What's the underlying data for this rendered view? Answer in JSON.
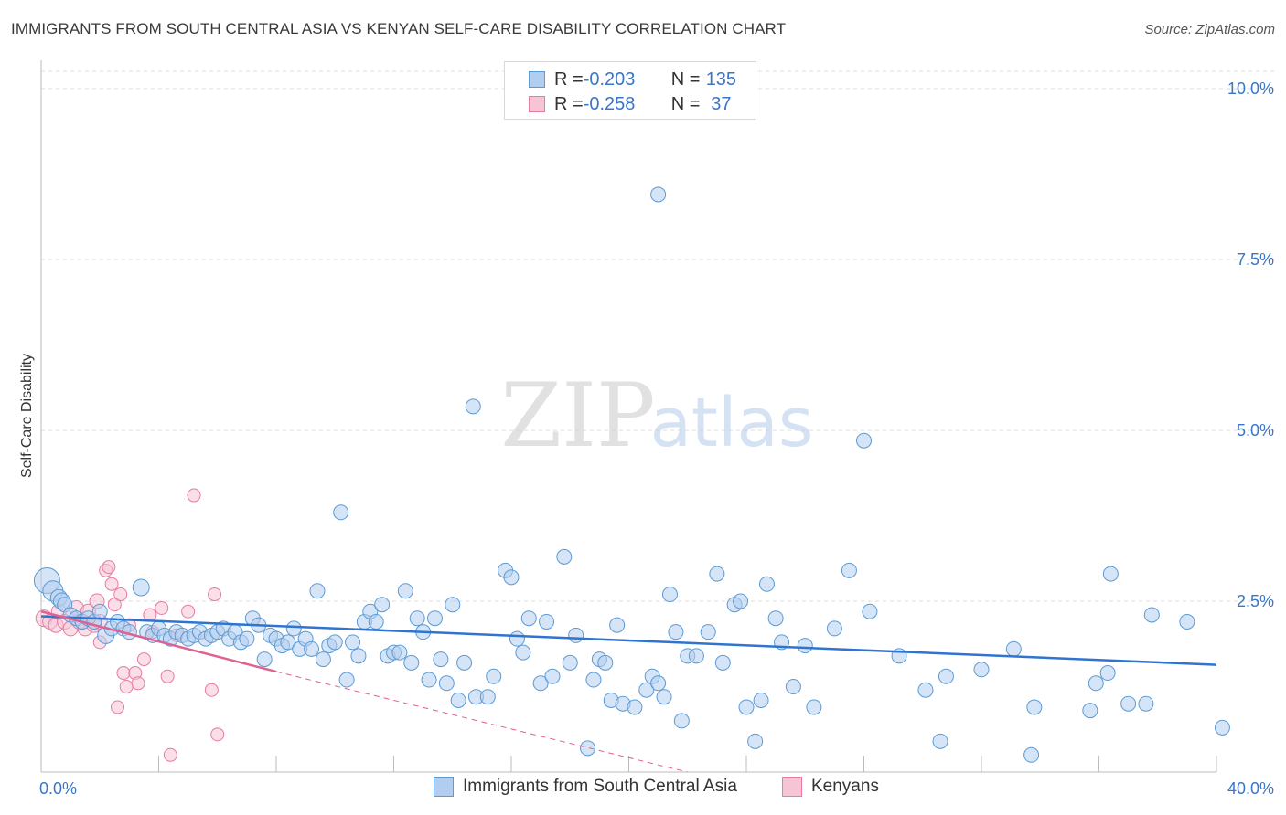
{
  "title": "IMMIGRANTS FROM SOUTH CENTRAL ASIA VS KENYAN SELF-CARE DISABILITY CORRELATION CHART",
  "source": "Source: ZipAtlas.com",
  "watermark": {
    "zip": "ZIP",
    "atlas": "atlas"
  },
  "colors": {
    "blue": "#5b9bd5",
    "blue_fill": "#b3cdef",
    "blue_line": "#2f74d0",
    "pink": "#e87aa3",
    "pink_fill": "#f7c4d6",
    "pink_line": "#e0608f",
    "axis_text": "#3a76c8",
    "grid": "#dcdcdc"
  },
  "legend": {
    "rows": [
      {
        "r_label": "R = ",
        "r_value": "-0.203",
        "n_label": "N = ",
        "n_value": "135",
        "color": "blue"
      },
      {
        "r_label": "R = ",
        "r_value": "-0.258",
        "n_label": "N = ",
        "n_value": " 37",
        "color": "pink"
      }
    ]
  },
  "bottom_legend": [
    {
      "label": "Immigrants from South Central Asia",
      "color": "blue"
    },
    {
      "label": "Kenyans",
      "color": "pink"
    }
  ],
  "chart_data": {
    "type": "scatter",
    "title": "IMMIGRANTS FROM SOUTH CENTRAL ASIA VS KENYAN SELF-CARE DISABILITY CORRELATION CHART",
    "xlabel": "",
    "ylabel": "Self-Care Disability",
    "xlim": [
      0,
      40
    ],
    "ylim": [
      0,
      10.5
    ],
    "x_tick_labels": [
      "0.0%",
      "40.0%"
    ],
    "y_ticks": [
      2.5,
      5.0,
      7.5,
      10.0
    ],
    "y_tick_labels": [
      "2.5%",
      "5.0%",
      "7.5%",
      "10.0%"
    ],
    "grid": true,
    "series": [
      {
        "name": "Immigrants from South Central Asia",
        "color": "blue",
        "r": -0.203,
        "n": 135,
        "trend": {
          "x": [
            0,
            40
          ],
          "y": [
            2.28,
            1.57
          ]
        },
        "points": [
          [
            0.2,
            2.8,
            14
          ],
          [
            0.4,
            2.65,
            11
          ],
          [
            0.6,
            2.55,
            9
          ],
          [
            0.7,
            2.5,
            9
          ],
          [
            0.8,
            2.45,
            8
          ],
          [
            1.0,
            2.3,
            8
          ],
          [
            1.2,
            2.25,
            8
          ],
          [
            1.4,
            2.2,
            8
          ],
          [
            1.6,
            2.25,
            8
          ],
          [
            1.8,
            2.2,
            8
          ],
          [
            2.0,
            2.35,
            8
          ],
          [
            2.2,
            2.0,
            9
          ],
          [
            2.4,
            2.1,
            8
          ],
          [
            2.6,
            2.2,
            8
          ],
          [
            2.8,
            2.1,
            8
          ],
          [
            3.0,
            2.05,
            8
          ],
          [
            3.4,
            2.7,
            9
          ],
          [
            3.6,
            2.05,
            8
          ],
          [
            3.8,
            2.0,
            8
          ],
          [
            4.0,
            2.1,
            8
          ],
          [
            4.2,
            2.0,
            8
          ],
          [
            4.4,
            1.95,
            8
          ],
          [
            4.6,
            2.05,
            8
          ],
          [
            4.8,
            2.0,
            8
          ],
          [
            5.0,
            1.95,
            8
          ],
          [
            5.2,
            2.0,
            8
          ],
          [
            5.4,
            2.05,
            8
          ],
          [
            5.6,
            1.95,
            8
          ],
          [
            5.8,
            2.0,
            8
          ],
          [
            6.0,
            2.05,
            8
          ],
          [
            6.2,
            2.1,
            8
          ],
          [
            6.4,
            1.95,
            8
          ],
          [
            6.6,
            2.05,
            8
          ],
          [
            6.8,
            1.9,
            8
          ],
          [
            7.0,
            1.95,
            8
          ],
          [
            7.2,
            2.25,
            8
          ],
          [
            7.4,
            2.15,
            8
          ],
          [
            7.6,
            1.65,
            8
          ],
          [
            7.8,
            2.0,
            8
          ],
          [
            8.0,
            1.95,
            8
          ],
          [
            8.2,
            1.85,
            8
          ],
          [
            8.4,
            1.9,
            8
          ],
          [
            8.6,
            2.1,
            8
          ],
          [
            8.8,
            1.8,
            8
          ],
          [
            9.0,
            1.95,
            8
          ],
          [
            9.2,
            1.8,
            8
          ],
          [
            9.4,
            2.65,
            8
          ],
          [
            9.6,
            1.65,
            8
          ],
          [
            9.8,
            1.85,
            8
          ],
          [
            10.0,
            1.9,
            8
          ],
          [
            10.2,
            3.8,
            8
          ],
          [
            10.4,
            1.35,
            8
          ],
          [
            10.6,
            1.9,
            8
          ],
          [
            10.8,
            1.7,
            8
          ],
          [
            11.0,
            2.2,
            8
          ],
          [
            11.2,
            2.35,
            8
          ],
          [
            11.4,
            2.2,
            8
          ],
          [
            11.6,
            2.45,
            8
          ],
          [
            11.8,
            1.7,
            8
          ],
          [
            12.0,
            1.75,
            8
          ],
          [
            12.2,
            1.75,
            8
          ],
          [
            12.4,
            2.65,
            8
          ],
          [
            12.6,
            1.6,
            8
          ],
          [
            12.8,
            2.25,
            8
          ],
          [
            13.0,
            2.05,
            8
          ],
          [
            13.2,
            1.35,
            8
          ],
          [
            13.4,
            2.25,
            8
          ],
          [
            13.6,
            1.65,
            8
          ],
          [
            13.8,
            1.3,
            8
          ],
          [
            14.0,
            2.45,
            8
          ],
          [
            14.2,
            1.05,
            8
          ],
          [
            14.4,
            1.6,
            8
          ],
          [
            14.7,
            5.35,
            8
          ],
          [
            14.8,
            1.1,
            8
          ],
          [
            15.2,
            1.1,
            8
          ],
          [
            15.4,
            1.4,
            8
          ],
          [
            15.8,
            2.95,
            8
          ],
          [
            16.0,
            2.85,
            8
          ],
          [
            16.2,
            1.95,
            8
          ],
          [
            16.4,
            1.75,
            8
          ],
          [
            16.6,
            2.25,
            8
          ],
          [
            17.0,
            1.3,
            8
          ],
          [
            17.2,
            2.2,
            8
          ],
          [
            17.4,
            1.4,
            8
          ],
          [
            17.8,
            3.15,
            8
          ],
          [
            18.0,
            1.6,
            8
          ],
          [
            18.2,
            2.0,
            8
          ],
          [
            18.6,
            0.35,
            8
          ],
          [
            18.8,
            1.35,
            8
          ],
          [
            19.0,
            1.65,
            8
          ],
          [
            19.2,
            1.6,
            8
          ],
          [
            19.4,
            1.05,
            8
          ],
          [
            19.6,
            2.15,
            8
          ],
          [
            19.8,
            1.0,
            8
          ],
          [
            20.2,
            0.95,
            8
          ],
          [
            20.6,
            1.2,
            8
          ],
          [
            20.8,
            1.4,
            8
          ],
          [
            21.0,
            1.3,
            8
          ],
          [
            21.2,
            1.1,
            8
          ],
          [
            21.4,
            2.6,
            8
          ],
          [
            21.6,
            2.05,
            8
          ],
          [
            21.8,
            0.75,
            8
          ],
          [
            22.0,
            1.7,
            8
          ],
          [
            22.3,
            1.7,
            8
          ],
          [
            22.7,
            2.05,
            8
          ],
          [
            23.0,
            2.9,
            8
          ],
          [
            23.2,
            1.6,
            8
          ],
          [
            23.6,
            2.45,
            8
          ],
          [
            23.8,
            2.5,
            8
          ],
          [
            24.0,
            0.95,
            8
          ],
          [
            24.3,
            0.45,
            8
          ],
          [
            24.5,
            1.05,
            8
          ],
          [
            24.7,
            2.75,
            8
          ],
          [
            25.0,
            2.25,
            8
          ],
          [
            25.2,
            1.9,
            8
          ],
          [
            25.6,
            1.25,
            8
          ],
          [
            26.0,
            1.85,
            8
          ],
          [
            26.3,
            0.95,
            8
          ],
          [
            27.0,
            2.1,
            8
          ],
          [
            27.5,
            2.95,
            8
          ],
          [
            28.0,
            4.85,
            8
          ],
          [
            28.2,
            2.35,
            8
          ],
          [
            29.2,
            1.7,
            8
          ],
          [
            30.1,
            1.2,
            8
          ],
          [
            30.6,
            0.45,
            8
          ],
          [
            30.8,
            1.4,
            8
          ],
          [
            32.0,
            1.5,
            8
          ],
          [
            33.1,
            1.8,
            8
          ],
          [
            33.7,
            0.25,
            8
          ],
          [
            33.8,
            0.95,
            8
          ],
          [
            35.7,
            0.9,
            8
          ],
          [
            35.9,
            1.3,
            8
          ],
          [
            36.3,
            1.45,
            8
          ],
          [
            36.4,
            2.9,
            8
          ],
          [
            37.0,
            1.0,
            8
          ],
          [
            37.6,
            1.0,
            8
          ],
          [
            37.8,
            2.3,
            8
          ],
          [
            39.0,
            2.2,
            8
          ],
          [
            40.2,
            0.65,
            8
          ],
          [
            21.0,
            8.45,
            8
          ]
        ]
      },
      {
        "name": "Kenyans",
        "color": "pink",
        "r": -0.258,
        "n": 37,
        "trend": {
          "x": [
            0,
            8
          ],
          "y": [
            2.35,
            1.47
          ]
        },
        "trend_ext": {
          "x": [
            8,
            22
          ],
          "y": [
            1.47,
            0.0
          ]
        },
        "points": [
          [
            0.1,
            2.25,
            9
          ],
          [
            0.3,
            2.2,
            8
          ],
          [
            0.5,
            2.15,
            8
          ],
          [
            0.6,
            2.35,
            8
          ],
          [
            0.8,
            2.2,
            8
          ],
          [
            1.0,
            2.1,
            8
          ],
          [
            1.2,
            2.4,
            8
          ],
          [
            1.3,
            2.2,
            8
          ],
          [
            1.5,
            2.1,
            8
          ],
          [
            1.6,
            2.35,
            8
          ],
          [
            1.8,
            2.15,
            8
          ],
          [
            1.9,
            2.5,
            8
          ],
          [
            2.0,
            2.2,
            8
          ],
          [
            2.0,
            1.9,
            7
          ],
          [
            2.2,
            2.95,
            7
          ],
          [
            2.3,
            3.0,
            7
          ],
          [
            2.4,
            2.75,
            7
          ],
          [
            2.5,
            2.45,
            7
          ],
          [
            2.6,
            0.95,
            7
          ],
          [
            2.7,
            2.6,
            7
          ],
          [
            2.8,
            1.45,
            7
          ],
          [
            2.9,
            1.25,
            7
          ],
          [
            3.0,
            2.15,
            7
          ],
          [
            3.2,
            1.45,
            7
          ],
          [
            3.3,
            1.3,
            7
          ],
          [
            3.5,
            1.65,
            7
          ],
          [
            3.7,
            2.3,
            7
          ],
          [
            3.8,
            2.05,
            7
          ],
          [
            4.1,
            2.4,
            7
          ],
          [
            4.3,
            1.4,
            7
          ],
          [
            4.4,
            0.25,
            7
          ],
          [
            4.6,
            2.0,
            7
          ],
          [
            5.0,
            2.35,
            7
          ],
          [
            5.2,
            4.05,
            7
          ],
          [
            5.8,
            1.2,
            7
          ],
          [
            5.9,
            2.6,
            7
          ],
          [
            6.0,
            0.55,
            7
          ]
        ]
      }
    ]
  }
}
